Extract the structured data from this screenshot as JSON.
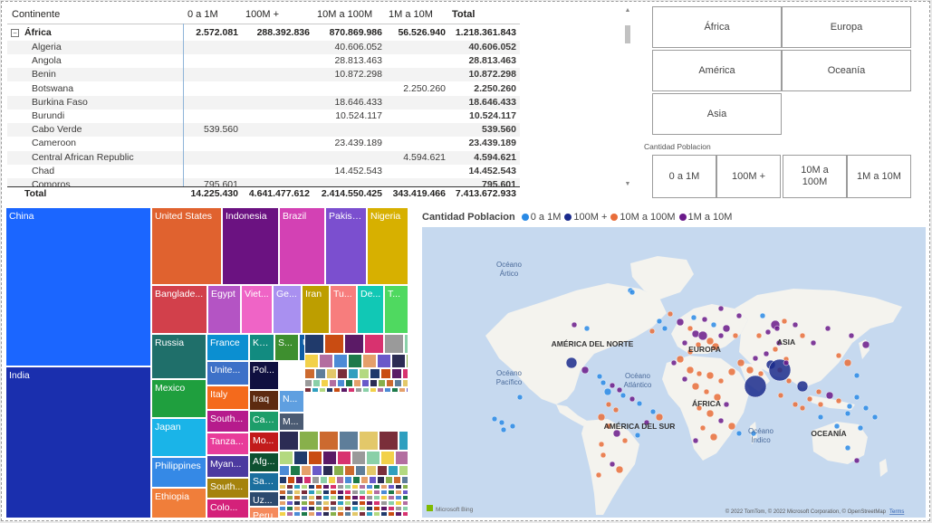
{
  "matrix": {
    "headers": [
      "Continente",
      "0 a 1M",
      "100M +",
      "10M a 100M",
      "1M a 10M",
      "Total"
    ],
    "continent_row": {
      "name": "África",
      "v1": "2.572.081",
      "v2": "288.392.836",
      "v3": "870.869.986",
      "v4": "56.526.940",
      "total": "1.218.361.843"
    },
    "rows": [
      {
        "name": "Algeria",
        "v1": "",
        "v2": "",
        "v3": "40.606.052",
        "v4": "",
        "total": "40.606.052"
      },
      {
        "name": "Angola",
        "v1": "",
        "v2": "",
        "v3": "28.813.463",
        "v4": "",
        "total": "28.813.463"
      },
      {
        "name": "Benin",
        "v1": "",
        "v2": "",
        "v3": "10.872.298",
        "v4": "",
        "total": "10.872.298"
      },
      {
        "name": "Botswana",
        "v1": "",
        "v2": "",
        "v3": "",
        "v4": "2.250.260",
        "total": "2.250.260"
      },
      {
        "name": "Burkina Faso",
        "v1": "",
        "v2": "",
        "v3": "18.646.433",
        "v4": "",
        "total": "18.646.433"
      },
      {
        "name": "Burundi",
        "v1": "",
        "v2": "",
        "v3": "10.524.117",
        "v4": "",
        "total": "10.524.117"
      },
      {
        "name": "Cabo Verde",
        "v1": "539.560",
        "v2": "",
        "v3": "",
        "v4": "",
        "total": "539.560"
      },
      {
        "name": "Cameroon",
        "v1": "",
        "v2": "",
        "v3": "23.439.189",
        "v4": "",
        "total": "23.439.189"
      },
      {
        "name": "Central African Republic",
        "v1": "",
        "v2": "",
        "v3": "",
        "v4": "4.594.621",
        "total": "4.594.621"
      },
      {
        "name": "Chad",
        "v1": "",
        "v2": "",
        "v3": "14.452.543",
        "v4": "",
        "total": "14.452.543"
      },
      {
        "name": "Comoros",
        "v1": "795.601",
        "v2": "",
        "v3": "",
        "v4": "",
        "total": "795.601"
      }
    ],
    "total_row": {
      "name": "Total",
      "v1": "14.225.430",
      "v2": "4.641.477.612",
      "v3": "2.414.550.425",
      "v4": "343.419.466",
      "total": "7.413.672.933"
    }
  },
  "slicers": {
    "continents": [
      "África",
      "Europa",
      "América",
      "Oceanía",
      "Asia"
    ],
    "population_title": "Cantidad Poblacion",
    "population_buttons": [
      "0 a 1M",
      "100M +",
      "10M a 100M",
      "1M a 10M"
    ]
  },
  "treemap": {
    "tiles": [
      {
        "label": "China",
        "color": "#1b66ff"
      },
      {
        "label": "India",
        "color": "#1a2fae"
      },
      {
        "label": "United States",
        "color": "#e0622f"
      },
      {
        "label": "Indonesia",
        "color": "#6b1281"
      },
      {
        "label": "Brazil",
        "color": "#d341b4"
      },
      {
        "label": "Pakistan",
        "color": "#7b4fcf"
      },
      {
        "label": "Nigeria",
        "color": "#d7b000"
      },
      {
        "label": "Banglade...",
        "color": "#d2404b"
      },
      {
        "label": "Egypt",
        "color": "#b454c4"
      },
      {
        "label": "Viet...",
        "color": "#ef64c6"
      },
      {
        "label": "Ge...",
        "color": "#a990f0"
      },
      {
        "label": "Iran",
        "color": "#bd9e00"
      },
      {
        "label": "Tu...",
        "color": "#f77d7d"
      },
      {
        "label": "De...",
        "color": "#11c8b5"
      },
      {
        "label": "T...",
        "color": "#4fd960"
      },
      {
        "label": "Russia",
        "color": "#1f6f6a"
      },
      {
        "label": "France",
        "color": "#0b8fd1"
      },
      {
        "label": "Ke...",
        "color": "#128b80"
      },
      {
        "label": "S...",
        "color": "#3e8f2f"
      },
      {
        "label": "U...",
        "color": "#0e5da5"
      },
      {
        "label": "Mexico",
        "color": "#1f9f3e"
      },
      {
        "label": "Unite...",
        "color": "#3d71c8"
      },
      {
        "label": "Pol...",
        "color": "#101040"
      },
      {
        "label": "Italy",
        "color": "#f46a1c"
      },
      {
        "label": "Iraq",
        "color": "#5d2a10"
      },
      {
        "label": "N...",
        "color": "#5f9fe0"
      },
      {
        "label": "Japan",
        "color": "#1ab4e8"
      },
      {
        "label": "South...",
        "color": "#b61b8c"
      },
      {
        "label": "Can...",
        "color": "#1d9e6a"
      },
      {
        "label": "M...",
        "color": "#4b5b73"
      },
      {
        "label": "Tanza...",
        "color": "#e83c9a"
      },
      {
        "label": "Mo...",
        "color": "#c21b1b"
      },
      {
        "label": "Philippines",
        "color": "#3589e6"
      },
      {
        "label": "Myan...",
        "color": "#4c3aa0"
      },
      {
        "label": "Afg...",
        "color": "#0e5030"
      },
      {
        "label": "Sau...",
        "color": "#1b6f9e"
      },
      {
        "label": "Ethiopia",
        "color": "#f07e3a"
      },
      {
        "label": "South...",
        "color": "#a5830d"
      },
      {
        "label": "Uz...",
        "color": "#2d4a6e"
      },
      {
        "label": "Colo...",
        "color": "#d4217a"
      },
      {
        "label": "Peru",
        "color": "#f58a5c"
      }
    ],
    "small_colors": [
      "#203a6b",
      "#c94c12",
      "#5b1a66",
      "#d8326f",
      "#9a9a9a",
      "#8ad0a8",
      "#f2d14a",
      "#b36ea0",
      "#4c8bd6",
      "#1d7a4a",
      "#e5a06b",
      "#6a59c9",
      "#2c2c54",
      "#88b04b",
      "#cc6a2f",
      "#5e7e9a",
      "#e3c86a",
      "#7a2e3a",
      "#2f9fbf",
      "#b3d980"
    ]
  },
  "map": {
    "title": "Cantidad Poblacion",
    "legend": [
      {
        "label": "0 a 1M",
        "color": "#2a8ae5"
      },
      {
        "label": "100M +",
        "color": "#1a2a8c"
      },
      {
        "label": "10M a 100M",
        "color": "#e86d3a"
      },
      {
        "label": "1M a 10M",
        "color": "#6a1a8a"
      }
    ],
    "labels": {
      "north_america": "AMÉRICA DEL NORTE",
      "south_america": "AMÉRICA DEL SUR",
      "europe": "EUROPA",
      "asia": "ASIA",
      "africa": "ÁFRICA",
      "oceania": "OCEANÍA",
      "arctic_1": "Océano",
      "arctic_2": "Ártico",
      "pacific_1": "Océano",
      "pacific_2": "Pacífico",
      "atlantic_1": "Océano",
      "atlantic_2": "Atlántico",
      "indian_1": "Océano",
      "indian_2": "Índico"
    },
    "brand": "Microsoft Bing",
    "copyright": "© 2022 TomTom, © 2022 Microsoft Corporation, © OpenStreetMap",
    "terms": "Terms",
    "sea_color": "#c6d9ef",
    "land_color": "#f4f3ee"
  }
}
